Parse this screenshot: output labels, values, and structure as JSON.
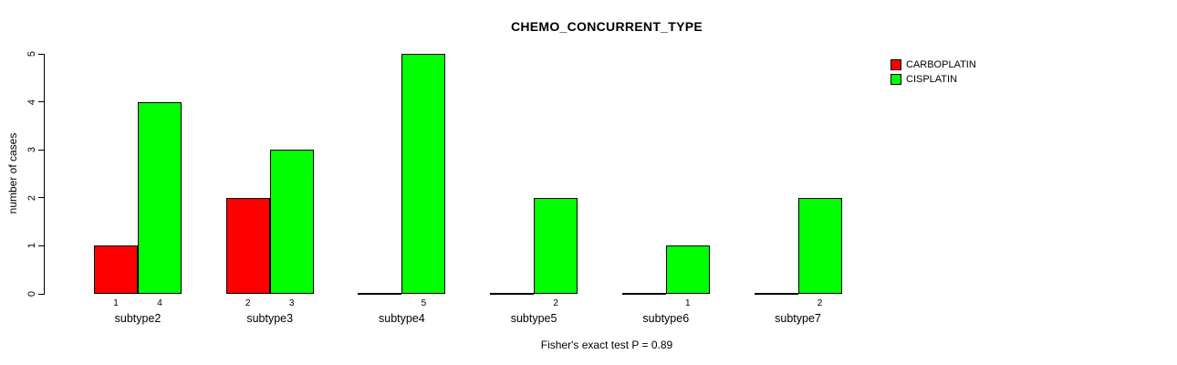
{
  "title": "CHEMO_CONCURRENT_TYPE",
  "ylabel": "number of cases",
  "footer": "Fisher's exact test P = 0.89",
  "legend": {
    "items": [
      {
        "label": "CARBOPLATIN",
        "color": "#ff0000"
      },
      {
        "label": "CISPLATIN",
        "color": "#00ff00"
      }
    ]
  },
  "chart_data": {
    "type": "bar",
    "grouped": true,
    "title": "CHEMO_CONCURRENT_TYPE",
    "xlabel": "",
    "ylabel": "number of cases",
    "categories": [
      "subtype2",
      "subtype3",
      "subtype4",
      "subtype5",
      "subtype6",
      "subtype7"
    ],
    "series": [
      {
        "name": "CARBOPLATIN",
        "color": "#ff0000",
        "values": [
          1,
          2,
          0,
          0,
          0,
          0
        ]
      },
      {
        "name": "CISPLATIN",
        "color": "#00ff00",
        "values": [
          4,
          3,
          5,
          2,
          1,
          2
        ]
      }
    ],
    "ylim": [
      0,
      5
    ],
    "yticks": [
      0,
      1,
      2,
      3,
      4,
      5
    ],
    "bar_value_labels": true,
    "zero_bars_drawn_as_baseline_segment": true,
    "grid": false,
    "legend_position": "top-right",
    "annotation": "Fisher's exact test P = 0.89",
    "bar_border_color": "#000000",
    "background_color": "#ffffff"
  }
}
